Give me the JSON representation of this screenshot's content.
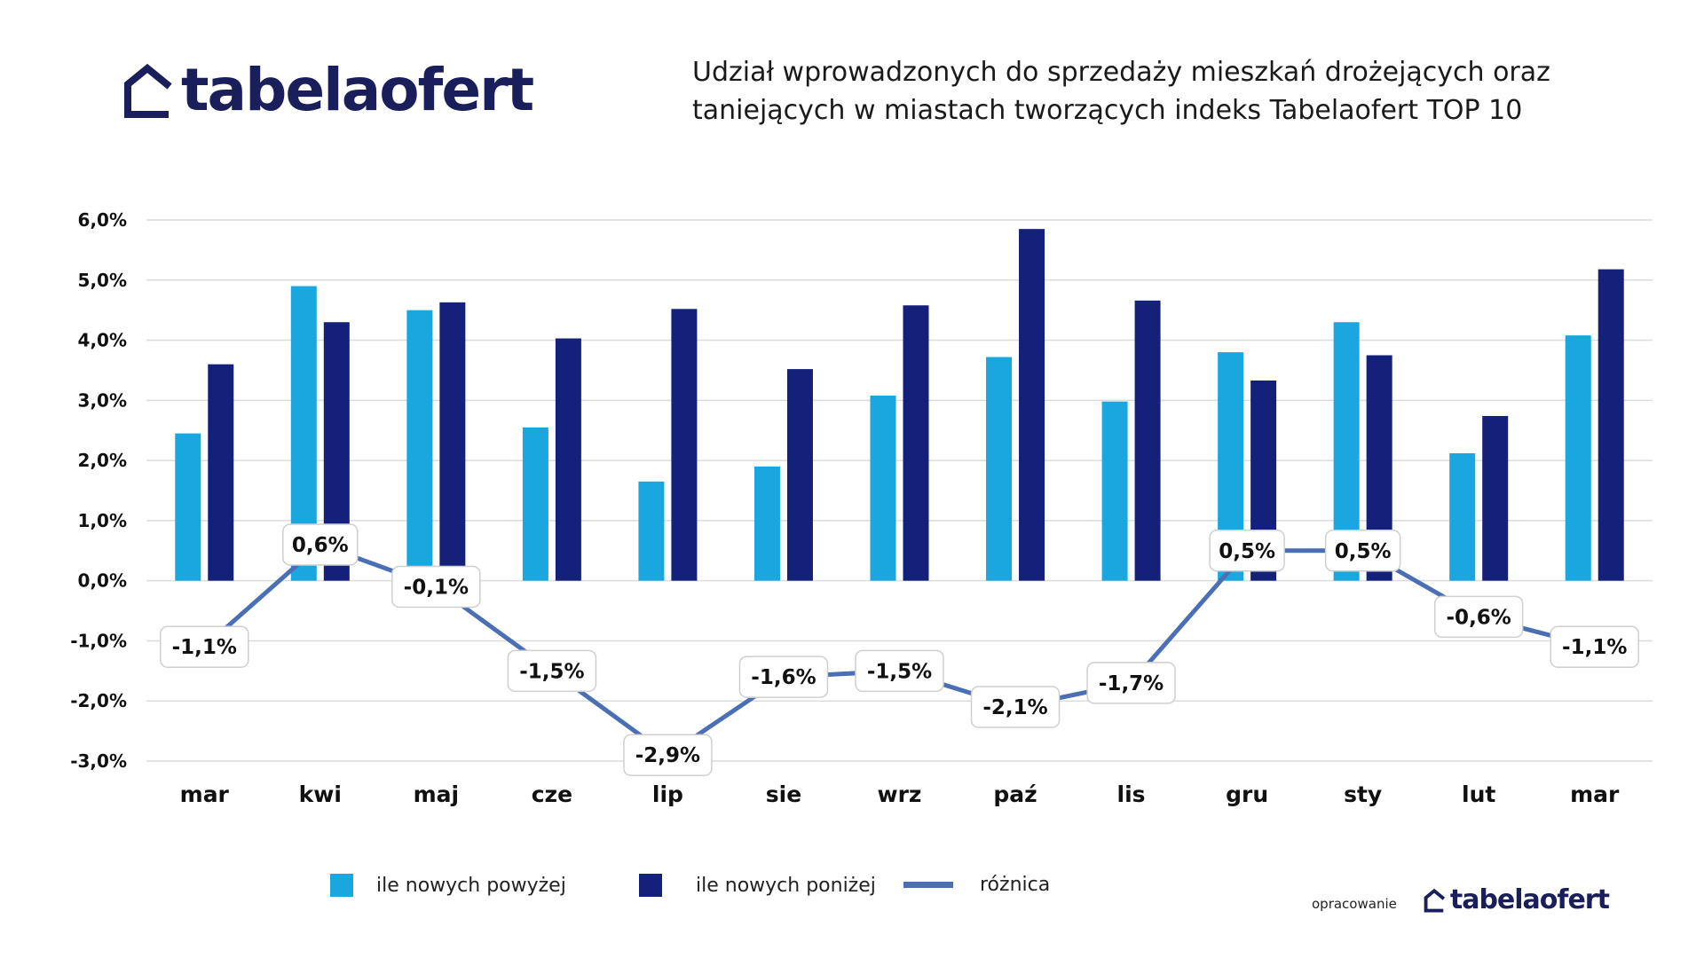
{
  "brand": {
    "name_part1": "tabela",
    "name_part2": "ofert",
    "color": "#1a1f5c",
    "logo_icon": "house-outline-icon"
  },
  "title": {
    "line1": "Udział wprowadzonych do sprzedaży mieszkań drożejących oraz",
    "line2": "taniejących w miastach tworzących indeks Tabelaofert TOP 10"
  },
  "colors": {
    "light_bar": "#1aa7e0",
    "dark_bar": "#13217a",
    "line": "#4a6fb5",
    "grid": "#dcdcdc"
  },
  "chart_data": {
    "type": "bar",
    "categories": [
      "mar",
      "kwi",
      "maj",
      "cze",
      "lip",
      "sie",
      "wrz",
      "paź",
      "lis",
      "gru",
      "sty",
      "lut",
      "mar"
    ],
    "series": [
      {
        "name": "ile nowych powyżej",
        "kind": "bar",
        "values": [
          2.45,
          4.9,
          4.5,
          2.55,
          1.65,
          1.9,
          3.08,
          3.72,
          2.98,
          3.8,
          4.3,
          2.12,
          4.08
        ]
      },
      {
        "name": "ile nowych poniżej",
        "kind": "bar",
        "values": [
          3.6,
          4.3,
          4.63,
          4.03,
          4.52,
          3.52,
          4.58,
          5.85,
          4.66,
          3.33,
          3.75,
          2.74,
          5.18
        ]
      },
      {
        "name": "różnica",
        "kind": "line",
        "values": [
          -1.1,
          0.6,
          -0.1,
          -1.5,
          -2.9,
          -1.6,
          -1.5,
          -2.1,
          -1.7,
          0.5,
          0.5,
          -0.6,
          -1.1
        ]
      }
    ],
    "diff_labels": [
      "-1,1%",
      "0,6%",
      "-0,1%",
      "-1,5%",
      "-2,9%",
      "-1,6%",
      "-1,5%",
      "-2,1%",
      "-1,7%",
      "0,5%",
      "0,5%",
      "-0,6%",
      "-1,1%"
    ],
    "y_ticks": [
      6,
      5,
      4,
      3,
      2,
      1,
      0,
      -1,
      -2,
      -3
    ],
    "y_tick_labels": [
      "6,0%",
      "5,0%",
      "4,0%",
      "3,0%",
      "2,0%",
      "1,0%",
      "0,0%",
      "-1,0%",
      "-2,0%",
      "-3,0%"
    ],
    "ylim": [
      -3,
      6
    ],
    "grid": true,
    "legend_position": "bottom"
  },
  "legend": {
    "items": [
      {
        "label": "ile nowych powyżej"
      },
      {
        "label": "ile nowych poniżej"
      },
      {
        "label": "różnica"
      }
    ]
  },
  "credit": {
    "label": "opracowanie",
    "brand_part1": "tabela",
    "brand_part2": "ofert"
  }
}
